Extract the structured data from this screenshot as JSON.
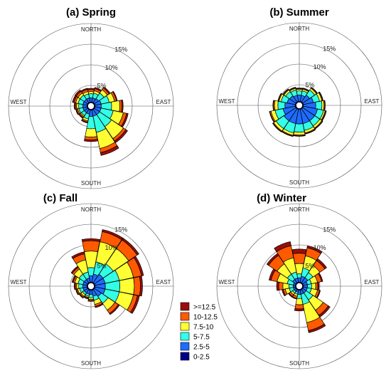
{
  "legend": {
    "bins": [
      {
        "label": ">=12.5",
        "color": "#9a0d0d"
      },
      {
        "label": "10-12.5",
        "color": "#ff5a00"
      },
      {
        "label": "7.5-10",
        "color": "#ffff33"
      },
      {
        "label": "5-7.5",
        "color": "#33ffe6"
      },
      {
        "label": "2.5-5",
        "color": "#1e6cff"
      },
      {
        "label": "0-2.5",
        "color": "#00008b"
      }
    ]
  },
  "chart_data": [
    {
      "type": "windrose",
      "title": "(a) Spring",
      "direction_labels": {
        "north": "NORTH",
        "east": "EAST",
        "south": "SOUTH",
        "west": "WEST"
      },
      "ring_labels": [
        "5%",
        "10%",
        "15%"
      ],
      "rings": [
        5,
        10,
        15,
        20
      ],
      "sectors": 16,
      "bins": [
        "0-2.5",
        "2.5-5",
        "5-7.5",
        "7.5-10",
        "10-12.5",
        ">=12.5"
      ],
      "cumulative": [
        [
          1.0,
          2.0,
          3.0,
          3.5,
          4.0,
          4.3
        ],
        [
          1.0,
          2.0,
          3.2,
          3.8,
          4.3,
          4.6
        ],
        [
          1.0,
          2.2,
          3.8,
          4.8,
          5.3,
          5.6
        ],
        [
          1.0,
          2.5,
          4.5,
          5.8,
          6.3,
          6.5
        ],
        [
          1.0,
          2.5,
          5.0,
          7.0,
          7.5,
          7.8
        ],
        [
          1.0,
          2.5,
          5.5,
          8.0,
          8.8,
          9.2
        ],
        [
          1.0,
          2.5,
          6.0,
          9.5,
          10.2,
          10.7
        ],
        [
          1.0,
          2.5,
          6.5,
          10.5,
          11.5,
          12.2
        ],
        [
          1.0,
          2.5,
          5.5,
          7.5,
          8.2,
          8.6
        ],
        [
          1.0,
          2.0,
          3.2,
          3.7,
          4.0,
          4.2
        ],
        [
          1.0,
          2.0,
          2.8,
          3.1,
          3.4,
          3.6
        ],
        [
          1.0,
          2.0,
          3.0,
          3.3,
          3.6,
          3.8
        ],
        [
          1.0,
          2.0,
          3.0,
          3.5,
          3.8,
          4.1
        ],
        [
          1.0,
          2.0,
          3.2,
          3.8,
          4.2,
          4.6
        ],
        [
          1.0,
          2.0,
          3.2,
          3.8,
          4.3,
          4.7
        ],
        [
          1.0,
          2.0,
          3.0,
          3.6,
          4.1,
          4.4
        ]
      ]
    },
    {
      "type": "windrose",
      "title": "(b) Summer",
      "direction_labels": {
        "north": "NORTH",
        "east": "EAST",
        "south": "SOUTH",
        "west": "WEST"
      },
      "ring_labels": [
        "5%",
        "10%",
        "15%"
      ],
      "rings": [
        5,
        10,
        15,
        20
      ],
      "sectors": 16,
      "bins": [
        "0-2.5",
        "2.5-5",
        "5-7.5",
        "7.5-10",
        "10-12.5",
        ">=12.5"
      ],
      "cumulative": [
        [
          1.0,
          2.5,
          3.5,
          3.9,
          4.1,
          4.2
        ],
        [
          1.0,
          2.5,
          3.6,
          4.0,
          4.2,
          4.3
        ],
        [
          1.0,
          3.0,
          4.5,
          5.0,
          5.2,
          5.3
        ],
        [
          1.0,
          3.5,
          5.0,
          5.6,
          5.8,
          5.9
        ],
        [
          1.0,
          4.0,
          5.5,
          6.0,
          6.2,
          6.3
        ],
        [
          1.0,
          4.5,
          6.0,
          6.4,
          6.6,
          6.7
        ],
        [
          1.0,
          4.5,
          6.0,
          6.6,
          6.8,
          6.9
        ],
        [
          1.0,
          4.5,
          6.2,
          6.8,
          7.0,
          7.1
        ],
        [
          1.0,
          4.5,
          6.5,
          7.2,
          7.4,
          7.5
        ],
        [
          1.0,
          4.5,
          6.8,
          7.4,
          7.6,
          7.7
        ],
        [
          1.0,
          4.5,
          6.8,
          7.5,
          7.7,
          7.8
        ],
        [
          1.0,
          4.0,
          6.0,
          7.0,
          7.3,
          7.4
        ],
        [
          1.0,
          3.5,
          5.2,
          6.0,
          6.3,
          6.4
        ],
        [
          1.0,
          3.0,
          4.5,
          5.0,
          5.2,
          5.3
        ],
        [
          1.0,
          2.8,
          4.0,
          4.5,
          4.7,
          4.8
        ],
        [
          1.0,
          2.5,
          3.8,
          4.2,
          4.4,
          4.5
        ]
      ]
    },
    {
      "type": "windrose",
      "title": "(c) Fall",
      "direction_labels": {
        "north": "NORTH",
        "east": "EAST",
        "south": "SOUTH",
        "west": "WEST"
      },
      "ring_labels": [
        "5%",
        "10%",
        "15%"
      ],
      "rings": [
        5,
        10,
        15,
        20
      ],
      "sectors": 16,
      "bins": [
        "0-2.5",
        "2.5-5",
        "5-7.5",
        "7.5-10",
        "10-12.5",
        ">=12.5"
      ],
      "cumulative": [
        [
          1.0,
          2.5,
          4.5,
          8.5,
          11.0,
          11.5
        ],
        [
          1.0,
          3.0,
          6.0,
          11.0,
          13.5,
          14.0
        ],
        [
          1.0,
          3.5,
          6.5,
          11.0,
          13.5,
          14.0
        ],
        [
          1.0,
          3.5,
          7.0,
          10.5,
          12.5,
          13.0
        ],
        [
          1.0,
          3.5,
          7.0,
          10.5,
          12.0,
          12.5
        ],
        [
          1.0,
          3.5,
          7.0,
          10.5,
          11.5,
          12.0
        ],
        [
          1.0,
          3.0,
          5.0,
          7.0,
          8.0,
          8.3
        ],
        [
          1.0,
          2.5,
          3.5,
          4.5,
          5.0,
          5.3
        ],
        [
          1.0,
          2.0,
          2.8,
          3.2,
          3.5,
          3.7
        ],
        [
          1.0,
          2.0,
          2.5,
          2.8,
          3.0,
          3.2
        ],
        [
          1.0,
          2.0,
          2.5,
          3.0,
          3.3,
          3.5
        ],
        [
          1.0,
          2.0,
          2.8,
          3.3,
          3.6,
          3.8
        ],
        [
          1.0,
          2.0,
          3.0,
          3.5,
          3.8,
          4.1
        ],
        [
          1.0,
          2.0,
          3.2,
          4.0,
          4.4,
          4.7
        ],
        [
          1.0,
          2.0,
          3.5,
          5.0,
          5.5,
          5.8
        ],
        [
          1.0,
          2.0,
          3.5,
          6.5,
          8.0,
          8.5
        ]
      ]
    },
    {
      "type": "windrose",
      "title": "(d) Winter",
      "direction_labels": {
        "north": "NORTH",
        "east": "EAST",
        "south": "SOUTH",
        "west": "WEST"
      },
      "ring_labels": [
        "5%",
        "10%",
        "15%"
      ],
      "rings": [
        5,
        10,
        15,
        20
      ],
      "sectors": 16,
      "bins": [
        "0-2.5",
        "2.5-5",
        "5-7.5",
        "7.5-10",
        "10-12.5",
        ">=12.5"
      ],
      "cumulative": [
        [
          1.0,
          2.0,
          3.0,
          5.5,
          8.0,
          9.0
        ],
        [
          1.0,
          2.5,
          4.5,
          7.5,
          9.5,
          10.0
        ],
        [
          1.0,
          2.5,
          4.0,
          6.0,
          7.5,
          8.0
        ],
        [
          1.0,
          2.0,
          3.0,
          4.5,
          5.5,
          5.8
        ],
        [
          1.0,
          2.0,
          3.0,
          4.0,
          4.5,
          4.8
        ],
        [
          1.0,
          2.0,
          3.0,
          4.5,
          5.0,
          5.2
        ],
        [
          1.0,
          2.0,
          4.0,
          7.0,
          8.5,
          9.0
        ],
        [
          1.0,
          2.0,
          4.5,
          9.0,
          11.0,
          11.5
        ],
        [
          1.0,
          2.0,
          3.0,
          4.5,
          5.5,
          6.0
        ],
        [
          1.0,
          1.5,
          2.0,
          2.5,
          3.0,
          3.2
        ],
        [
          1.0,
          1.5,
          2.0,
          2.5,
          3.0,
          3.2
        ],
        [
          1.0,
          1.5,
          2.5,
          3.5,
          4.0,
          4.3
        ],
        [
          1.0,
          1.5,
          2.5,
          4.0,
          5.0,
          5.5
        ],
        [
          1.0,
          1.5,
          3.0,
          5.5,
          7.0,
          7.5
        ],
        [
          1.0,
          2.0,
          3.5,
          6.5,
          9.0,
          9.5
        ],
        [
          1.0,
          2.0,
          3.5,
          7.0,
          10.0,
          11.0
        ]
      ]
    }
  ]
}
